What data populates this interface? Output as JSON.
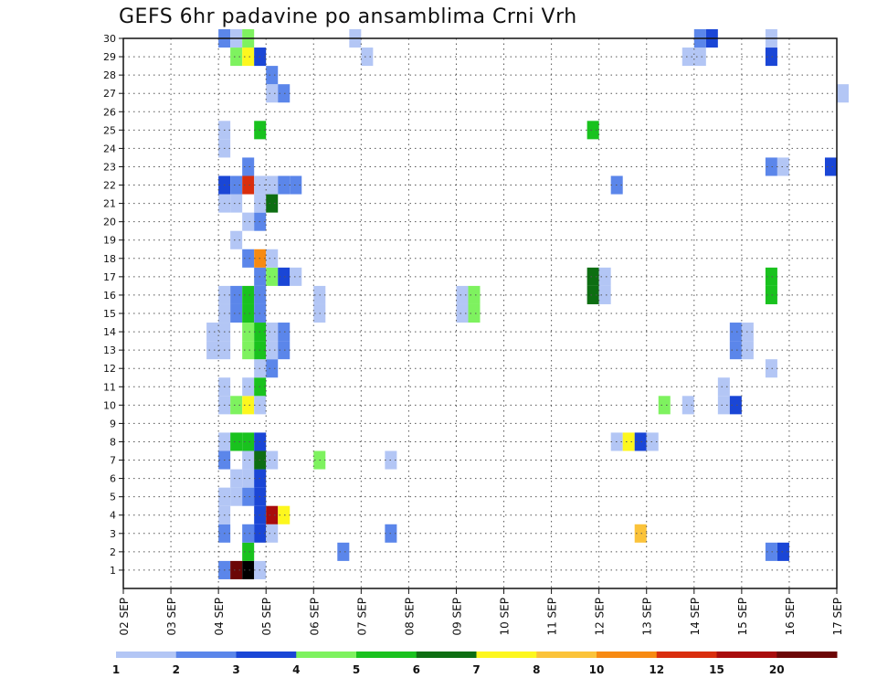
{
  "chart_data": {
    "type": "heatmap",
    "title": "GEFS 6hr padavine po ansamblima Crni Vrh",
    "x_ticks": [
      "02 SEP",
      "03 SEP",
      "04 SEP",
      "05 SEP",
      "06 SEP",
      "07 SEP",
      "08 SEP",
      "09 SEP",
      "10 SEP",
      "11 SEP",
      "12 SEP",
      "13 SEP",
      "14 SEP",
      "15 SEP",
      "16 SEP",
      "17 SEP"
    ],
    "x_range_days": [
      2,
      17
    ],
    "y_range": [
      0,
      30
    ],
    "y_ticks": [
      1,
      2,
      3,
      4,
      5,
      6,
      7,
      8,
      9,
      10,
      11,
      12,
      13,
      14,
      15,
      16,
      17,
      18,
      19,
      20,
      21,
      22,
      23,
      24,
      25,
      26,
      27,
      28,
      29,
      30
    ],
    "grid": true,
    "colorbar": {
      "boundaries": [
        "1",
        "2",
        "3",
        "4",
        "5",
        "6",
        "7",
        "8",
        "10",
        "12",
        "15",
        "20"
      ],
      "colors": [
        "#b3c6f5",
        "#5b86ea",
        "#1a46d6",
        "#7ef25f",
        "#19c21e",
        "#0d6e12",
        "#fdf71e",
        "#fbc33a",
        "#f78a12",
        "#d92e0d",
        "#a90c0c",
        "#6c0606"
      ]
    },
    "cells": [
      {
        "m": 1,
        "d": 4.0,
        "c": 1
      },
      {
        "m": 1,
        "d": 4.25,
        "c": 11
      },
      {
        "m": 1,
        "d": 4.5,
        "c": 12
      },
      {
        "m": 1,
        "d": 4.75,
        "c": 0
      },
      {
        "m": 2,
        "d": 4.5,
        "c": 4
      },
      {
        "m": 2,
        "d": 6.5,
        "c": 1
      },
      {
        "m": 2,
        "d": 15.5,
        "c": 1
      },
      {
        "m": 2,
        "d": 15.75,
        "c": 2
      },
      {
        "m": 3,
        "d": 4.0,
        "c": 1
      },
      {
        "m": 3,
        "d": 4.5,
        "c": 1
      },
      {
        "m": 3,
        "d": 4.75,
        "c": 2
      },
      {
        "m": 3,
        "d": 5.0,
        "c": 0
      },
      {
        "m": 3,
        "d": 7.5,
        "c": 1
      },
      {
        "m": 3,
        "d": 12.75,
        "c": 7
      },
      {
        "m": 4,
        "d": 4.0,
        "c": 0
      },
      {
        "m": 4,
        "d": 4.75,
        "c": 2
      },
      {
        "m": 4,
        "d": 5.0,
        "c": 10
      },
      {
        "m": 4,
        "d": 5.25,
        "c": 6
      },
      {
        "m": 5,
        "d": 4.0,
        "c": 0
      },
      {
        "m": 5,
        "d": 4.25,
        "c": 0
      },
      {
        "m": 5,
        "d": 4.5,
        "c": 1
      },
      {
        "m": 5,
        "d": 4.75,
        "c": 2
      },
      {
        "m": 6,
        "d": 4.25,
        "c": 0
      },
      {
        "m": 6,
        "d": 4.5,
        "c": 0
      },
      {
        "m": 6,
        "d": 4.75,
        "c": 2
      },
      {
        "m": 7,
        "d": 4.0,
        "c": 1
      },
      {
        "m": 7,
        "d": 4.5,
        "c": 0
      },
      {
        "m": 7,
        "d": 4.75,
        "c": 5
      },
      {
        "m": 7,
        "d": 5.0,
        "c": 0
      },
      {
        "m": 7,
        "d": 6.0,
        "c": 3
      },
      {
        "m": 7,
        "d": 7.5,
        "c": 0
      },
      {
        "m": 8,
        "d": 4.0,
        "c": 0
      },
      {
        "m": 8,
        "d": 4.25,
        "c": 4
      },
      {
        "m": 8,
        "d": 4.5,
        "c": 4
      },
      {
        "m": 8,
        "d": 4.75,
        "c": 2
      },
      {
        "m": 8,
        "d": 12.25,
        "c": 0
      },
      {
        "m": 8,
        "d": 12.5,
        "c": 6
      },
      {
        "m": 8,
        "d": 12.75,
        "c": 2
      },
      {
        "m": 8,
        "d": 13.0,
        "c": 0
      },
      {
        "m": 10,
        "d": 4.0,
        "c": 0
      },
      {
        "m": 10,
        "d": 4.25,
        "c": 3
      },
      {
        "m": 10,
        "d": 4.5,
        "c": 6
      },
      {
        "m": 10,
        "d": 4.75,
        "c": 0
      },
      {
        "m": 10,
        "d": 13.25,
        "c": 3
      },
      {
        "m": 10,
        "d": 13.75,
        "c": 0
      },
      {
        "m": 10,
        "d": 14.5,
        "c": 0
      },
      {
        "m": 10,
        "d": 14.75,
        "c": 2
      },
      {
        "m": 11,
        "d": 4.0,
        "c": 0
      },
      {
        "m": 11,
        "d": 4.5,
        "c": 0
      },
      {
        "m": 11,
        "d": 4.75,
        "c": 4
      },
      {
        "m": 11,
        "d": 14.5,
        "c": 0
      },
      {
        "m": 12,
        "d": 4.75,
        "c": 0
      },
      {
        "m": 12,
        "d": 5.0,
        "c": 1
      },
      {
        "m": 12,
        "d": 15.5,
        "c": 0
      },
      {
        "m": 13,
        "d": 3.75,
        "c": 0
      },
      {
        "m": 13,
        "d": 4.0,
        "c": 0
      },
      {
        "m": 13,
        "d": 4.5,
        "c": 3
      },
      {
        "m": 13,
        "d": 4.75,
        "c": 4
      },
      {
        "m": 13,
        "d": 5.0,
        "c": 0
      },
      {
        "m": 13,
        "d": 5.25,
        "c": 1
      },
      {
        "m": 13,
        "d": 14.75,
        "c": 1
      },
      {
        "m": 13,
        "d": 15.0,
        "c": 0
      },
      {
        "m": 14,
        "d": 3.75,
        "c": 0
      },
      {
        "m": 14,
        "d": 4.0,
        "c": 0
      },
      {
        "m": 14,
        "d": 4.5,
        "c": 3
      },
      {
        "m": 14,
        "d": 4.75,
        "c": 4
      },
      {
        "m": 14,
        "d": 5.0,
        "c": 0
      },
      {
        "m": 14,
        "d": 5.25,
        "c": 1
      },
      {
        "m": 14,
        "d": 14.75,
        "c": 1
      },
      {
        "m": 14,
        "d": 15.0,
        "c": 0
      },
      {
        "m": 15,
        "d": 4.0,
        "c": 0
      },
      {
        "m": 15,
        "d": 4.25,
        "c": 1
      },
      {
        "m": 15,
        "d": 4.5,
        "c": 4
      },
      {
        "m": 15,
        "d": 4.75,
        "c": 1
      },
      {
        "m": 15,
        "d": 6.0,
        "c": 0
      },
      {
        "m": 15,
        "d": 9.0,
        "c": 0
      },
      {
        "m": 15,
        "d": 9.25,
        "c": 3
      },
      {
        "m": 16,
        "d": 4.0,
        "c": 0
      },
      {
        "m": 16,
        "d": 4.25,
        "c": 1
      },
      {
        "m": 16,
        "d": 4.5,
        "c": 4
      },
      {
        "m": 16,
        "d": 4.75,
        "c": 1
      },
      {
        "m": 16,
        "d": 6.0,
        "c": 0
      },
      {
        "m": 16,
        "d": 9.0,
        "c": 0
      },
      {
        "m": 16,
        "d": 9.25,
        "c": 3
      },
      {
        "m": 16,
        "d": 11.75,
        "c": 5
      },
      {
        "m": 16,
        "d": 12.0,
        "c": 0
      },
      {
        "m": 16,
        "d": 15.5,
        "c": 4
      },
      {
        "m": 17,
        "d": 4.75,
        "c": 1
      },
      {
        "m": 17,
        "d": 5.0,
        "c": 3
      },
      {
        "m": 17,
        "d": 5.25,
        "c": 2
      },
      {
        "m": 17,
        "d": 5.5,
        "c": 0
      },
      {
        "m": 17,
        "d": 11.75,
        "c": 5
      },
      {
        "m": 17,
        "d": 12.0,
        "c": 0
      },
      {
        "m": 17,
        "d": 15.5,
        "c": 4
      },
      {
        "m": 18,
        "d": 4.5,
        "c": 1
      },
      {
        "m": 18,
        "d": 4.75,
        "c": 8
      },
      {
        "m": 18,
        "d": 5.0,
        "c": 0
      },
      {
        "m": 19,
        "d": 4.25,
        "c": 0
      },
      {
        "m": 20,
        "d": 4.5,
        "c": 0
      },
      {
        "m": 20,
        "d": 4.75,
        "c": 1
      },
      {
        "m": 21,
        "d": 4.0,
        "c": 0
      },
      {
        "m": 21,
        "d": 4.25,
        "c": 0
      },
      {
        "m": 21,
        "d": 4.75,
        "c": 0
      },
      {
        "m": 21,
        "d": 5.0,
        "c": 5
      },
      {
        "m": 22,
        "d": 4.0,
        "c": 2
      },
      {
        "m": 22,
        "d": 4.25,
        "c": 1
      },
      {
        "m": 22,
        "d": 4.5,
        "c": 9
      },
      {
        "m": 22,
        "d": 4.75,
        "c": 0
      },
      {
        "m": 22,
        "d": 5.0,
        "c": 0
      },
      {
        "m": 22,
        "d": 5.25,
        "c": 1
      },
      {
        "m": 22,
        "d": 5.5,
        "c": 1
      },
      {
        "m": 22,
        "d": 12.25,
        "c": 1
      },
      {
        "m": 23,
        "d": 4.5,
        "c": 1
      },
      {
        "m": 23,
        "d": 15.5,
        "c": 1
      },
      {
        "m": 23,
        "d": 15.75,
        "c": 0
      },
      {
        "m": 23,
        "d": 16.75,
        "c": 2
      },
      {
        "m": 24,
        "d": 4.0,
        "c": 0
      },
      {
        "m": 25,
        "d": 4.0,
        "c": 0
      },
      {
        "m": 25,
        "d": 4.75,
        "c": 4
      },
      {
        "m": 25,
        "d": 11.75,
        "c": 4
      },
      {
        "m": 27,
        "d": 5.0,
        "c": 0
      },
      {
        "m": 27,
        "d": 5.25,
        "c": 1
      },
      {
        "m": 27,
        "d": 17.0,
        "c": 0
      },
      {
        "m": 28,
        "d": 5.0,
        "c": 1
      },
      {
        "m": 29,
        "d": 4.25,
        "c": 3
      },
      {
        "m": 29,
        "d": 4.5,
        "c": 6
      },
      {
        "m": 29,
        "d": 4.75,
        "c": 2
      },
      {
        "m": 29,
        "d": 7.0,
        "c": 0
      },
      {
        "m": 29,
        "d": 13.75,
        "c": 0
      },
      {
        "m": 29,
        "d": 14.0,
        "c": 0
      },
      {
        "m": 29,
        "d": 15.5,
        "c": 2
      },
      {
        "m": 30,
        "d": 4.0,
        "c": 1
      },
      {
        "m": 30,
        "d": 4.25,
        "c": 0
      },
      {
        "m": 30,
        "d": 4.5,
        "c": 3
      },
      {
        "m": 30,
        "d": 6.75,
        "c": 0
      },
      {
        "m": 30,
        "d": 14.0,
        "c": 1
      },
      {
        "m": 30,
        "d": 14.25,
        "c": 2
      },
      {
        "m": 30,
        "d": 15.5,
        "c": 0
      }
    ]
  }
}
